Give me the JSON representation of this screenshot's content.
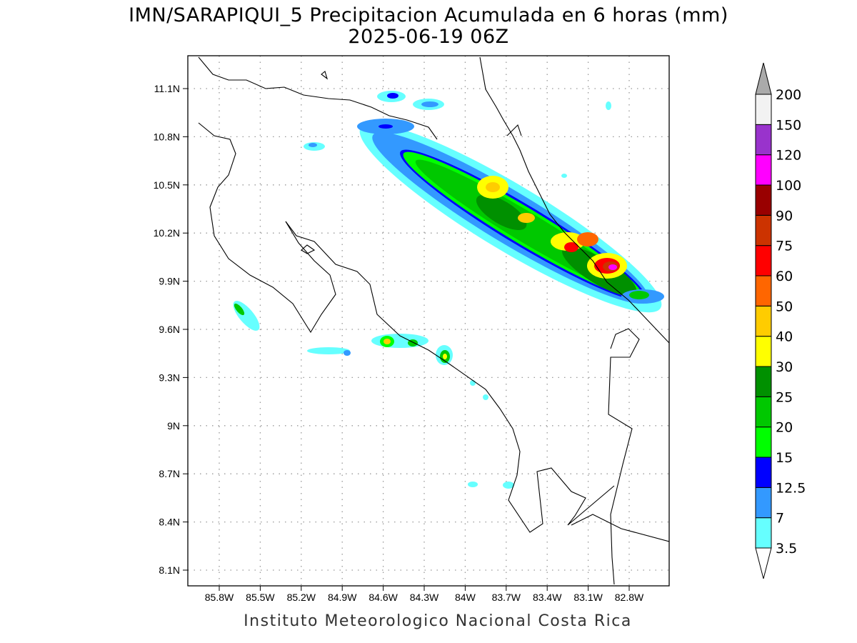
{
  "title": {
    "line1": "IMN/SARAPIQUI_5 Precipitacion Acumulada en 6 horas (mm)",
    "line2": "2025-06-19 06Z"
  },
  "footer": "Instituto Meteorologico Nacional Costa Rica",
  "axes": {
    "lon_ticks": [
      "85.8W",
      "85.5W",
      "85.2W",
      "84.9W",
      "84.6W",
      "84.3W",
      "84W",
      "83.7W",
      "83.4W",
      "83.1W",
      "82.8W"
    ],
    "lat_ticks": [
      "11.1N",
      "10.8N",
      "10.5N",
      "10.2N",
      "9.9N",
      "9.6N",
      "9.3N",
      "9N",
      "8.7N",
      "8.4N",
      "8.1N"
    ]
  },
  "colorbar": {
    "labels": [
      "3.5",
      "7",
      "12.5",
      "15",
      "20",
      "25",
      "30",
      "40",
      "50",
      "60",
      "75",
      "90",
      "100",
      "120",
      "150",
      "200"
    ],
    "colors": [
      "#66ffff",
      "#3399ff",
      "#0000ff",
      "#00ff00",
      "#00c800",
      "#009000",
      "#ffff00",
      "#ffcc00",
      "#ff6600",
      "#ff0000",
      "#cc3300",
      "#990000",
      "#ff00ff",
      "#9933cc",
      "#f2f2f2"
    ],
    "over_color": "#aaaaaa",
    "under_color": "#ffffff"
  }
}
